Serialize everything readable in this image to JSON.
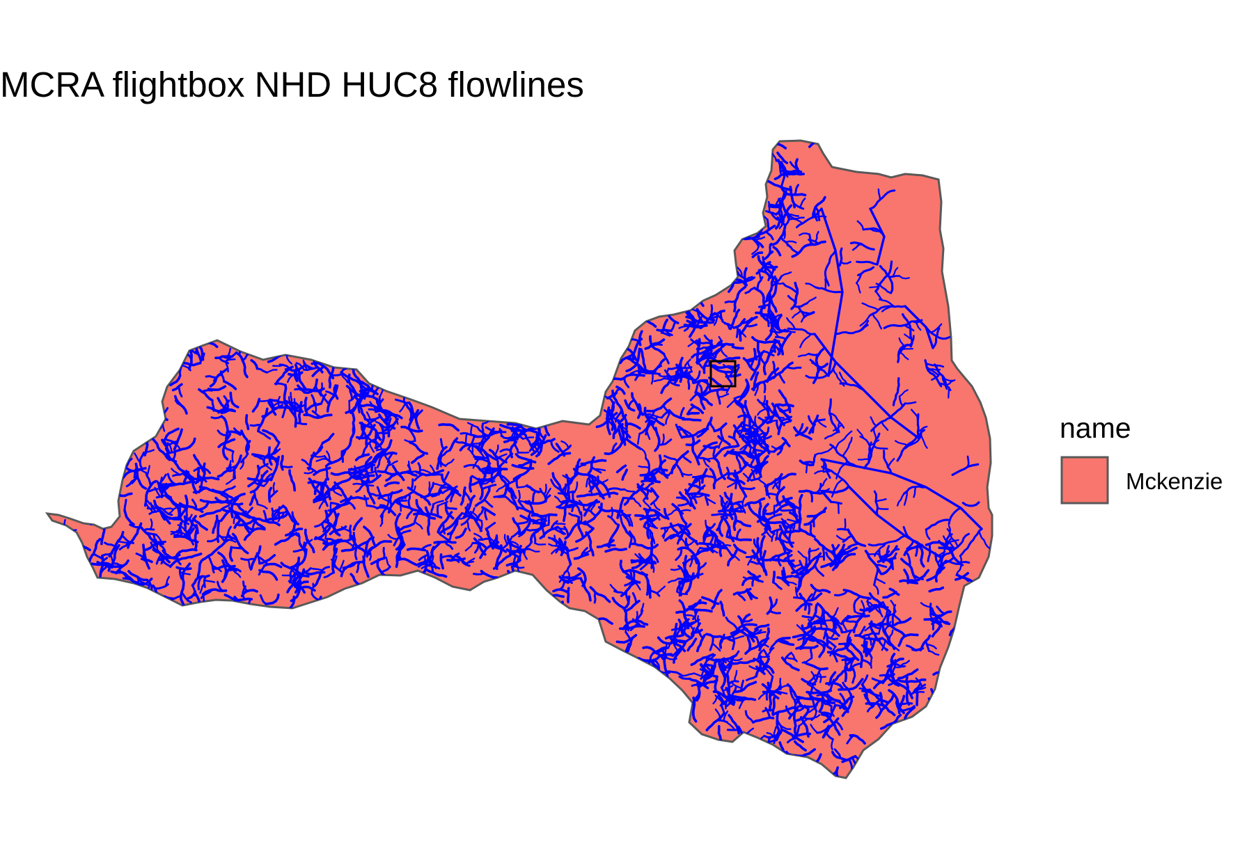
{
  "title": "MCRA flightbox NHD HUC8 flowlines",
  "legend": {
    "title": "name",
    "items": [
      {
        "label": "Mckenzie",
        "fill": "#F8766D",
        "stroke": "#595959"
      }
    ]
  },
  "colors": {
    "basin_fill": "#F8766D",
    "basin_outline": "#595959",
    "flowlines": "#0000FF",
    "flightbox_outline": "#000000"
  },
  "layers": [
    "basin-polygon",
    "flowlines",
    "flightbox"
  ]
}
